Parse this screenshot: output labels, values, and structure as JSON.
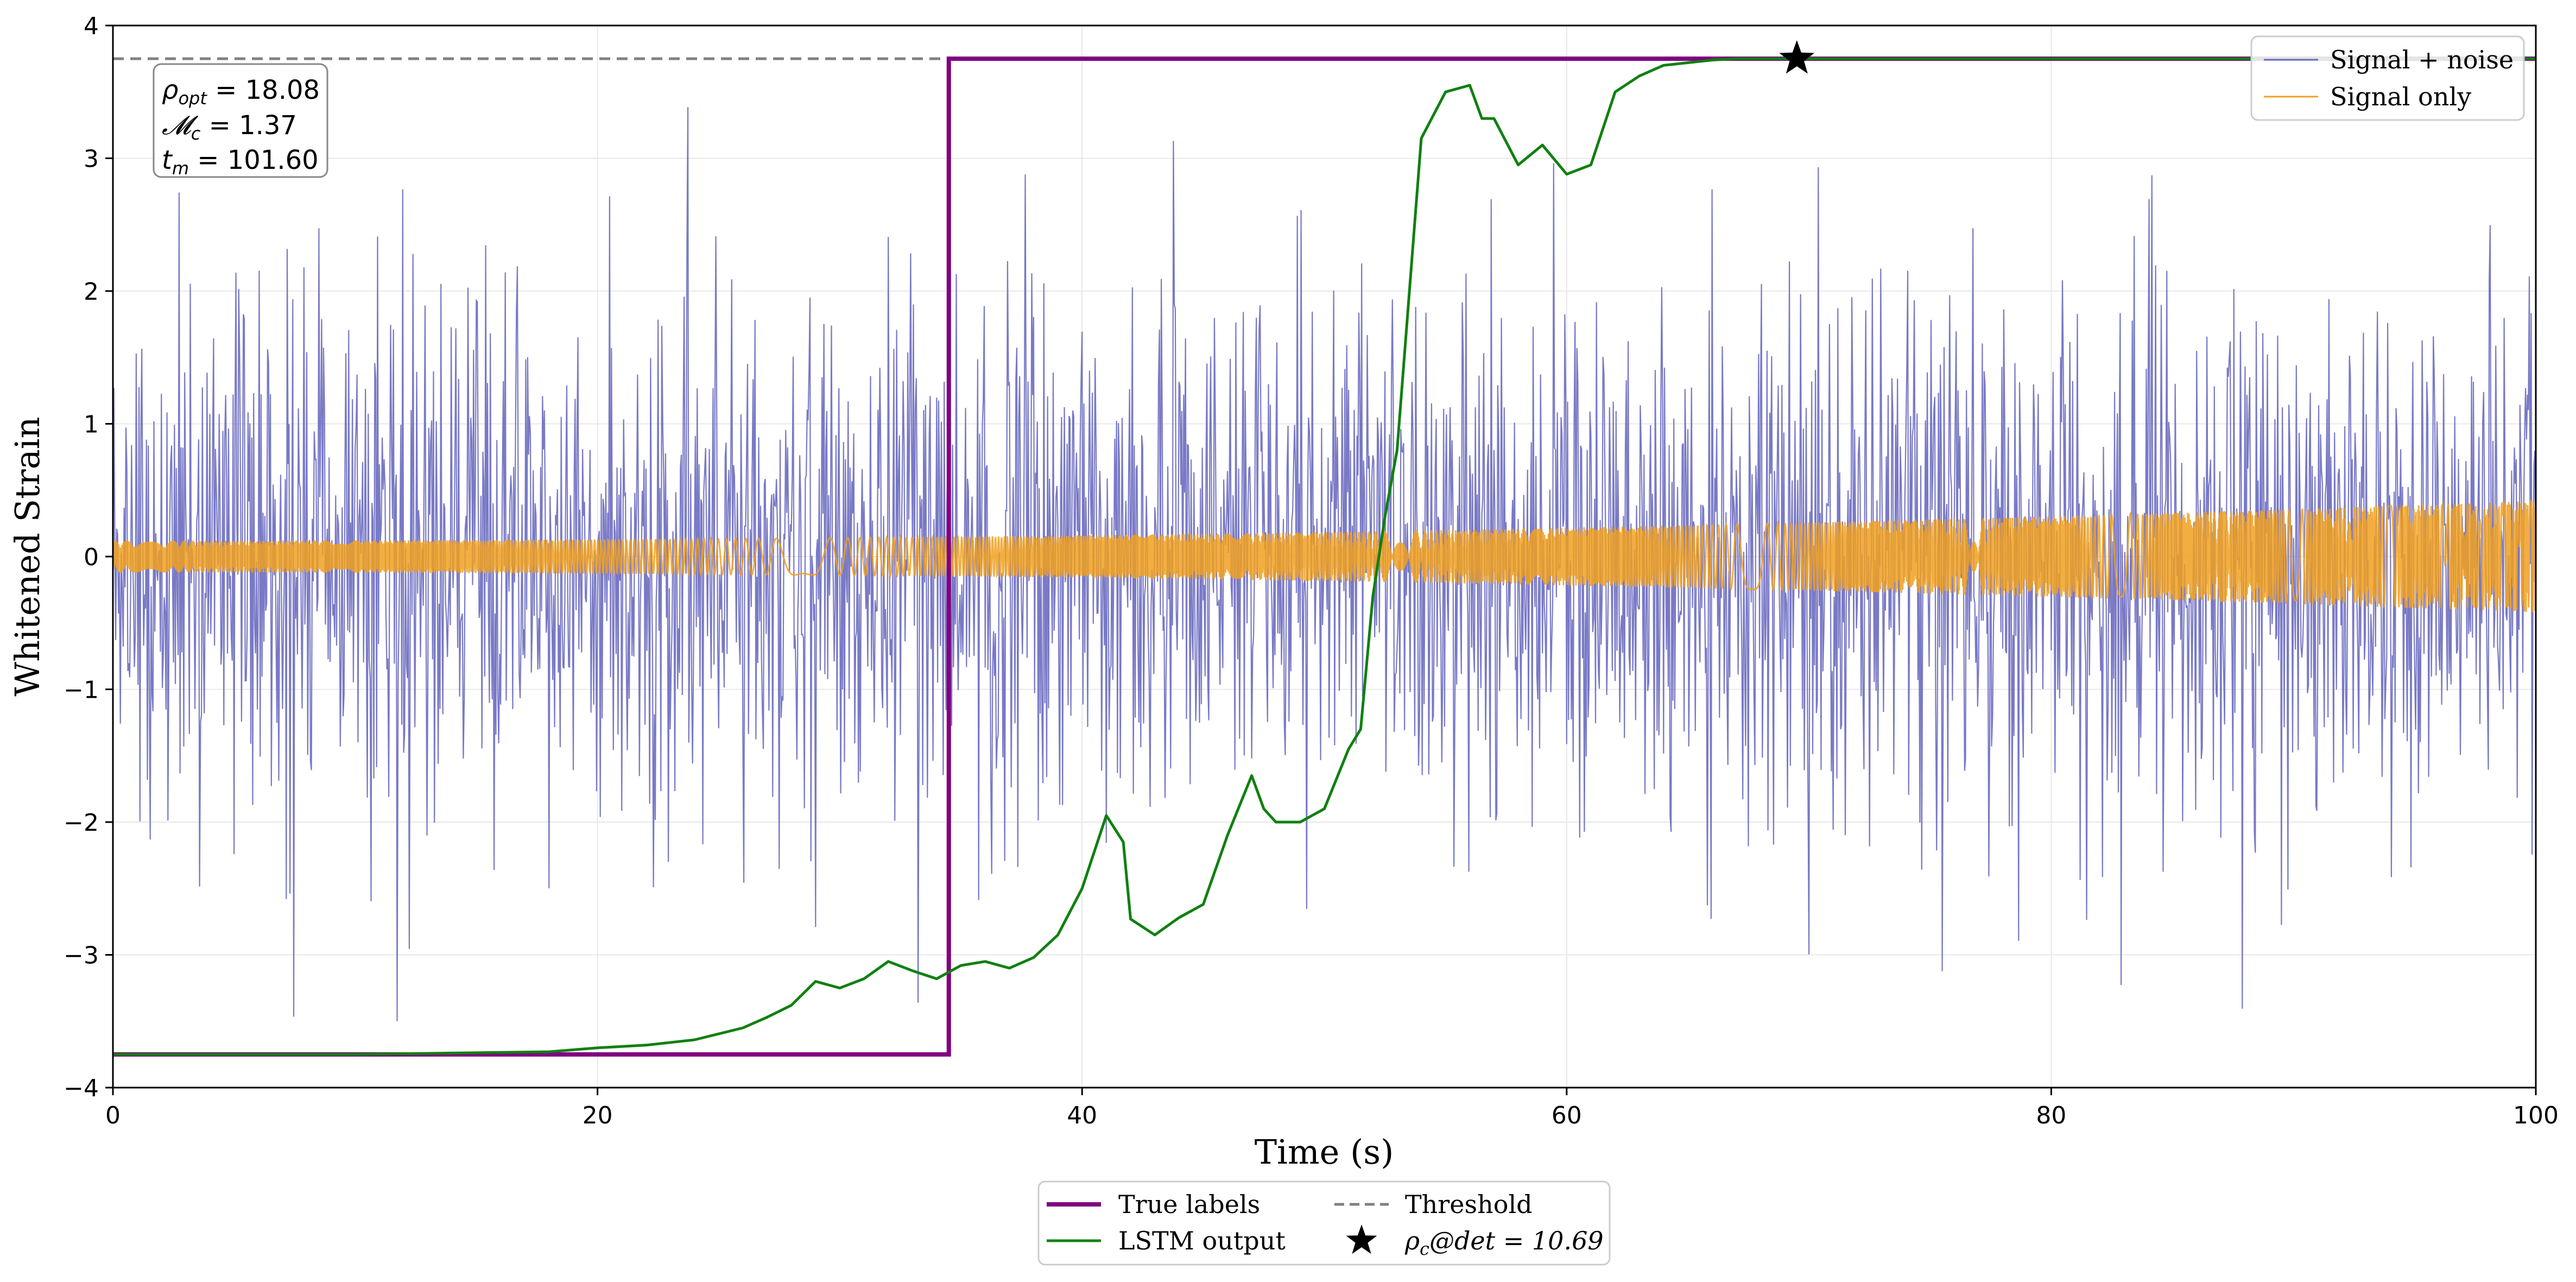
{
  "chart_data": {
    "type": "line",
    "xlabel": "Time (s)",
    "ylabel": "Whitened Strain",
    "xlim": [
      0,
      100
    ],
    "ylim": [
      -4,
      4
    ],
    "grid": true,
    "x_ticks": [
      0,
      20,
      40,
      60,
      80,
      100
    ],
    "x_tick_labels": [
      "0",
      "20",
      "40",
      "60",
      "80",
      "100"
    ],
    "y_ticks": [
      -4,
      -3,
      -2,
      -1,
      0,
      1,
      2,
      3,
      4
    ],
    "y_tick_labels": [
      "−4",
      "−3",
      "−2",
      "−1",
      "0",
      "1",
      "2",
      "3",
      "4"
    ],
    "threshold": {
      "name": "Threshold",
      "y": 3.75,
      "color": "#808080",
      "style": "dashed"
    },
    "true_labels": {
      "name": "True labels",
      "color": "#800080",
      "low": -3.75,
      "high": 3.75,
      "step_x": 34.5
    },
    "lstm_output": {
      "name": "LSTM output",
      "color": "#108010",
      "x": [
        0,
        10,
        14,
        18,
        20,
        22,
        24,
        26,
        27,
        28,
        29,
        30,
        31,
        32,
        33,
        33.5,
        34,
        35,
        36,
        37,
        38,
        39,
        40,
        41,
        41.7,
        42,
        43,
        44,
        45,
        46,
        47,
        47.5,
        48,
        49,
        50,
        51,
        51.5,
        52,
        52.5,
        53,
        54,
        55,
        56,
        56.5,
        57,
        58,
        59,
        60,
        61,
        62,
        63,
        64,
        65,
        66,
        67,
        69.5,
        100
      ],
      "y": [
        -3.75,
        -3.75,
        -3.74,
        -3.73,
        -3.7,
        -3.68,
        -3.64,
        -3.55,
        -3.47,
        -3.38,
        -3.2,
        -3.25,
        -3.18,
        -3.05,
        -3.12,
        -3.15,
        -3.18,
        -3.08,
        -3.05,
        -3.1,
        -3.02,
        -2.85,
        -2.5,
        -1.95,
        -2.15,
        -2.73,
        -2.85,
        -2.72,
        -2.62,
        -2.1,
        -1.65,
        -1.9,
        -2.0,
        -2.0,
        -1.9,
        -1.45,
        -1.3,
        -0.3,
        0.3,
        0.8,
        3.15,
        3.5,
        3.55,
        3.3,
        3.3,
        2.95,
        3.1,
        2.88,
        2.95,
        3.5,
        3.62,
        3.7,
        3.72,
        3.74,
        3.75,
        3.75,
        3.75
      ]
    },
    "signal_plus_noise": {
      "name": "Signal + noise",
      "color": "#6a6ac0",
      "amplitude_std": 1.0,
      "range": [
        -3.5,
        3.7
      ]
    },
    "signal_only": {
      "name": "Signal only",
      "color": "#f0a020",
      "start_amplitude": 0.12,
      "end_amplitude": 0.42
    },
    "detection": {
      "x": 69.5,
      "y": 3.75,
      "marker": "star",
      "label": "ρ_c@det = 10.69",
      "value": 10.69
    },
    "annotation": {
      "rho_opt": "ρ_opt = 18.08",
      "mchirp": "𝓜_c = 1.37",
      "t_m": "t_m = 101.60"
    },
    "legend_upper": [
      "Signal + noise",
      "Signal only"
    ],
    "legend_lower": [
      "True labels",
      "Threshold",
      "LSTM output",
      "ρ_c@det = 10.69"
    ]
  },
  "legend": {
    "signal_noise": "Signal + noise",
    "signal_only": "Signal only",
    "true_labels": "True labels",
    "threshold": "Threshold",
    "lstm": "LSTM output",
    "det_prefix": "ρ",
    "det_sub": "c",
    "det_suffix": "@det = 10.69"
  },
  "annotation_box": {
    "line1_sym": "ρ",
    "line1_sub": "opt",
    "line1_val": " = 18.08",
    "line2_sym": "𝓜",
    "line2_sub": "c",
    "line2_val": " = 1.37",
    "line3_sym": "t",
    "line3_sub": "m",
    "line3_val": " = 101.60"
  }
}
